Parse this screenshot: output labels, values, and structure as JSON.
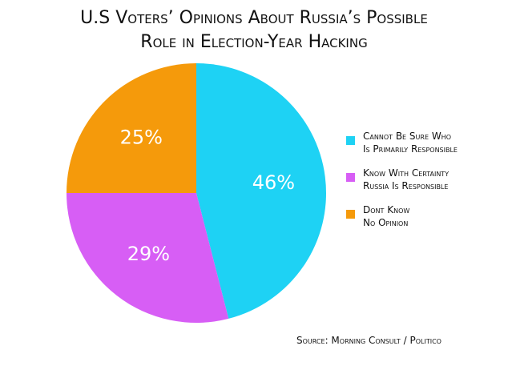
{
  "chart_data": {
    "type": "pie",
    "title": "U.S Voters’ Opinions About Russia’s Possible\nRole in Election-Year Hacking",
    "categories": [
      "Cannot Be Sure Who\nIs Primarily Responsible",
      "Know With Certainty\nRussia Is Responsible",
      "Dont Know\nNo Opinion"
    ],
    "values": [
      46,
      29,
      25
    ],
    "value_labels": [
      "46%",
      "29%",
      "25%"
    ],
    "colors": [
      "#1ed2f4",
      "#d75ef5",
      "#f59a0b"
    ],
    "source": "Source: Morning Consult / Politico",
    "legend": "right"
  }
}
